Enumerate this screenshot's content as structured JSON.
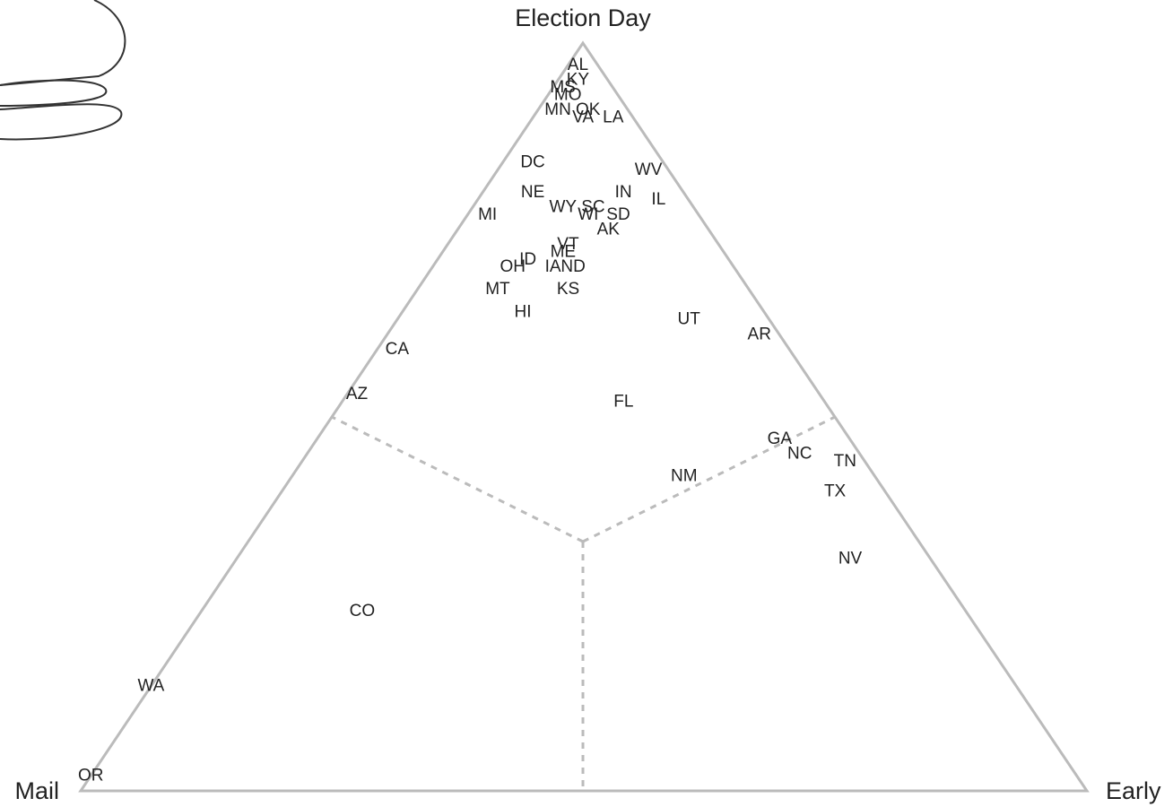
{
  "chart_data": {
    "type": "ternary",
    "components": [
      {
        "name": "Election Day",
        "vertex": "top"
      },
      {
        "name": "Mail",
        "vertex": "left"
      },
      {
        "name": "Early",
        "vertex": "right"
      }
    ],
    "labels": [
      "OR",
      "WA",
      "CO",
      "AZ",
      "CA",
      "MI",
      "DC",
      "NE",
      "WY",
      "SC",
      "WI",
      "SD",
      "IN",
      "IL",
      "WV",
      "AK",
      "ME",
      "VT",
      "ID",
      "OH",
      "IA",
      "ND",
      "MT",
      "KS",
      "HI",
      "UT",
      "AR",
      "FL",
      "NM",
      "GA",
      "NC",
      "TN",
      "TX",
      "NV",
      "AL",
      "KY",
      "MS",
      "MO",
      "MN",
      "OK",
      "VA",
      "LA"
    ],
    "values": [
      [
        2,
        98,
        0
      ],
      [
        14,
        86,
        0
      ],
      [
        24,
        60,
        16
      ],
      [
        53,
        46,
        1
      ],
      [
        59,
        39,
        2
      ],
      [
        77,
        21,
        2
      ],
      [
        84,
        13,
        3
      ],
      [
        80,
        15,
        5
      ],
      [
        78,
        13,
        9
      ],
      [
        78,
        10,
        12
      ],
      [
        77,
        11,
        12
      ],
      [
        77,
        8,
        15
      ],
      [
        80,
        6,
        14
      ],
      [
        79,
        3,
        18
      ],
      [
        83,
        2,
        15
      ],
      [
        75,
        10,
        15
      ],
      [
        72,
        16,
        12
      ],
      [
        73,
        15,
        12
      ],
      [
        71,
        20,
        9
      ],
      [
        70,
        22,
        8
      ],
      [
        70,
        18,
        12
      ],
      [
        70,
        16,
        14
      ],
      [
        67,
        25,
        8
      ],
      [
        67,
        18,
        15
      ],
      [
        64,
        24,
        12
      ],
      [
        63,
        8,
        29
      ],
      [
        61,
        2,
        37
      ],
      [
        52,
        20,
        28
      ],
      [
        42,
        19,
        39
      ],
      [
        47,
        7,
        46
      ],
      [
        45,
        6,
        49
      ],
      [
        44,
        2,
        54
      ],
      [
        40,
        5,
        55
      ],
      [
        31,
        8,
        61
      ],
      [
        97,
        2,
        1
      ],
      [
        95,
        3,
        2
      ],
      [
        94,
        5,
        1
      ],
      [
        93,
        5,
        2
      ],
      [
        91,
        7,
        2
      ],
      [
        91,
        4,
        5
      ],
      [
        90,
        5,
        5
      ],
      [
        90,
        2,
        8
      ]
    ]
  }
}
